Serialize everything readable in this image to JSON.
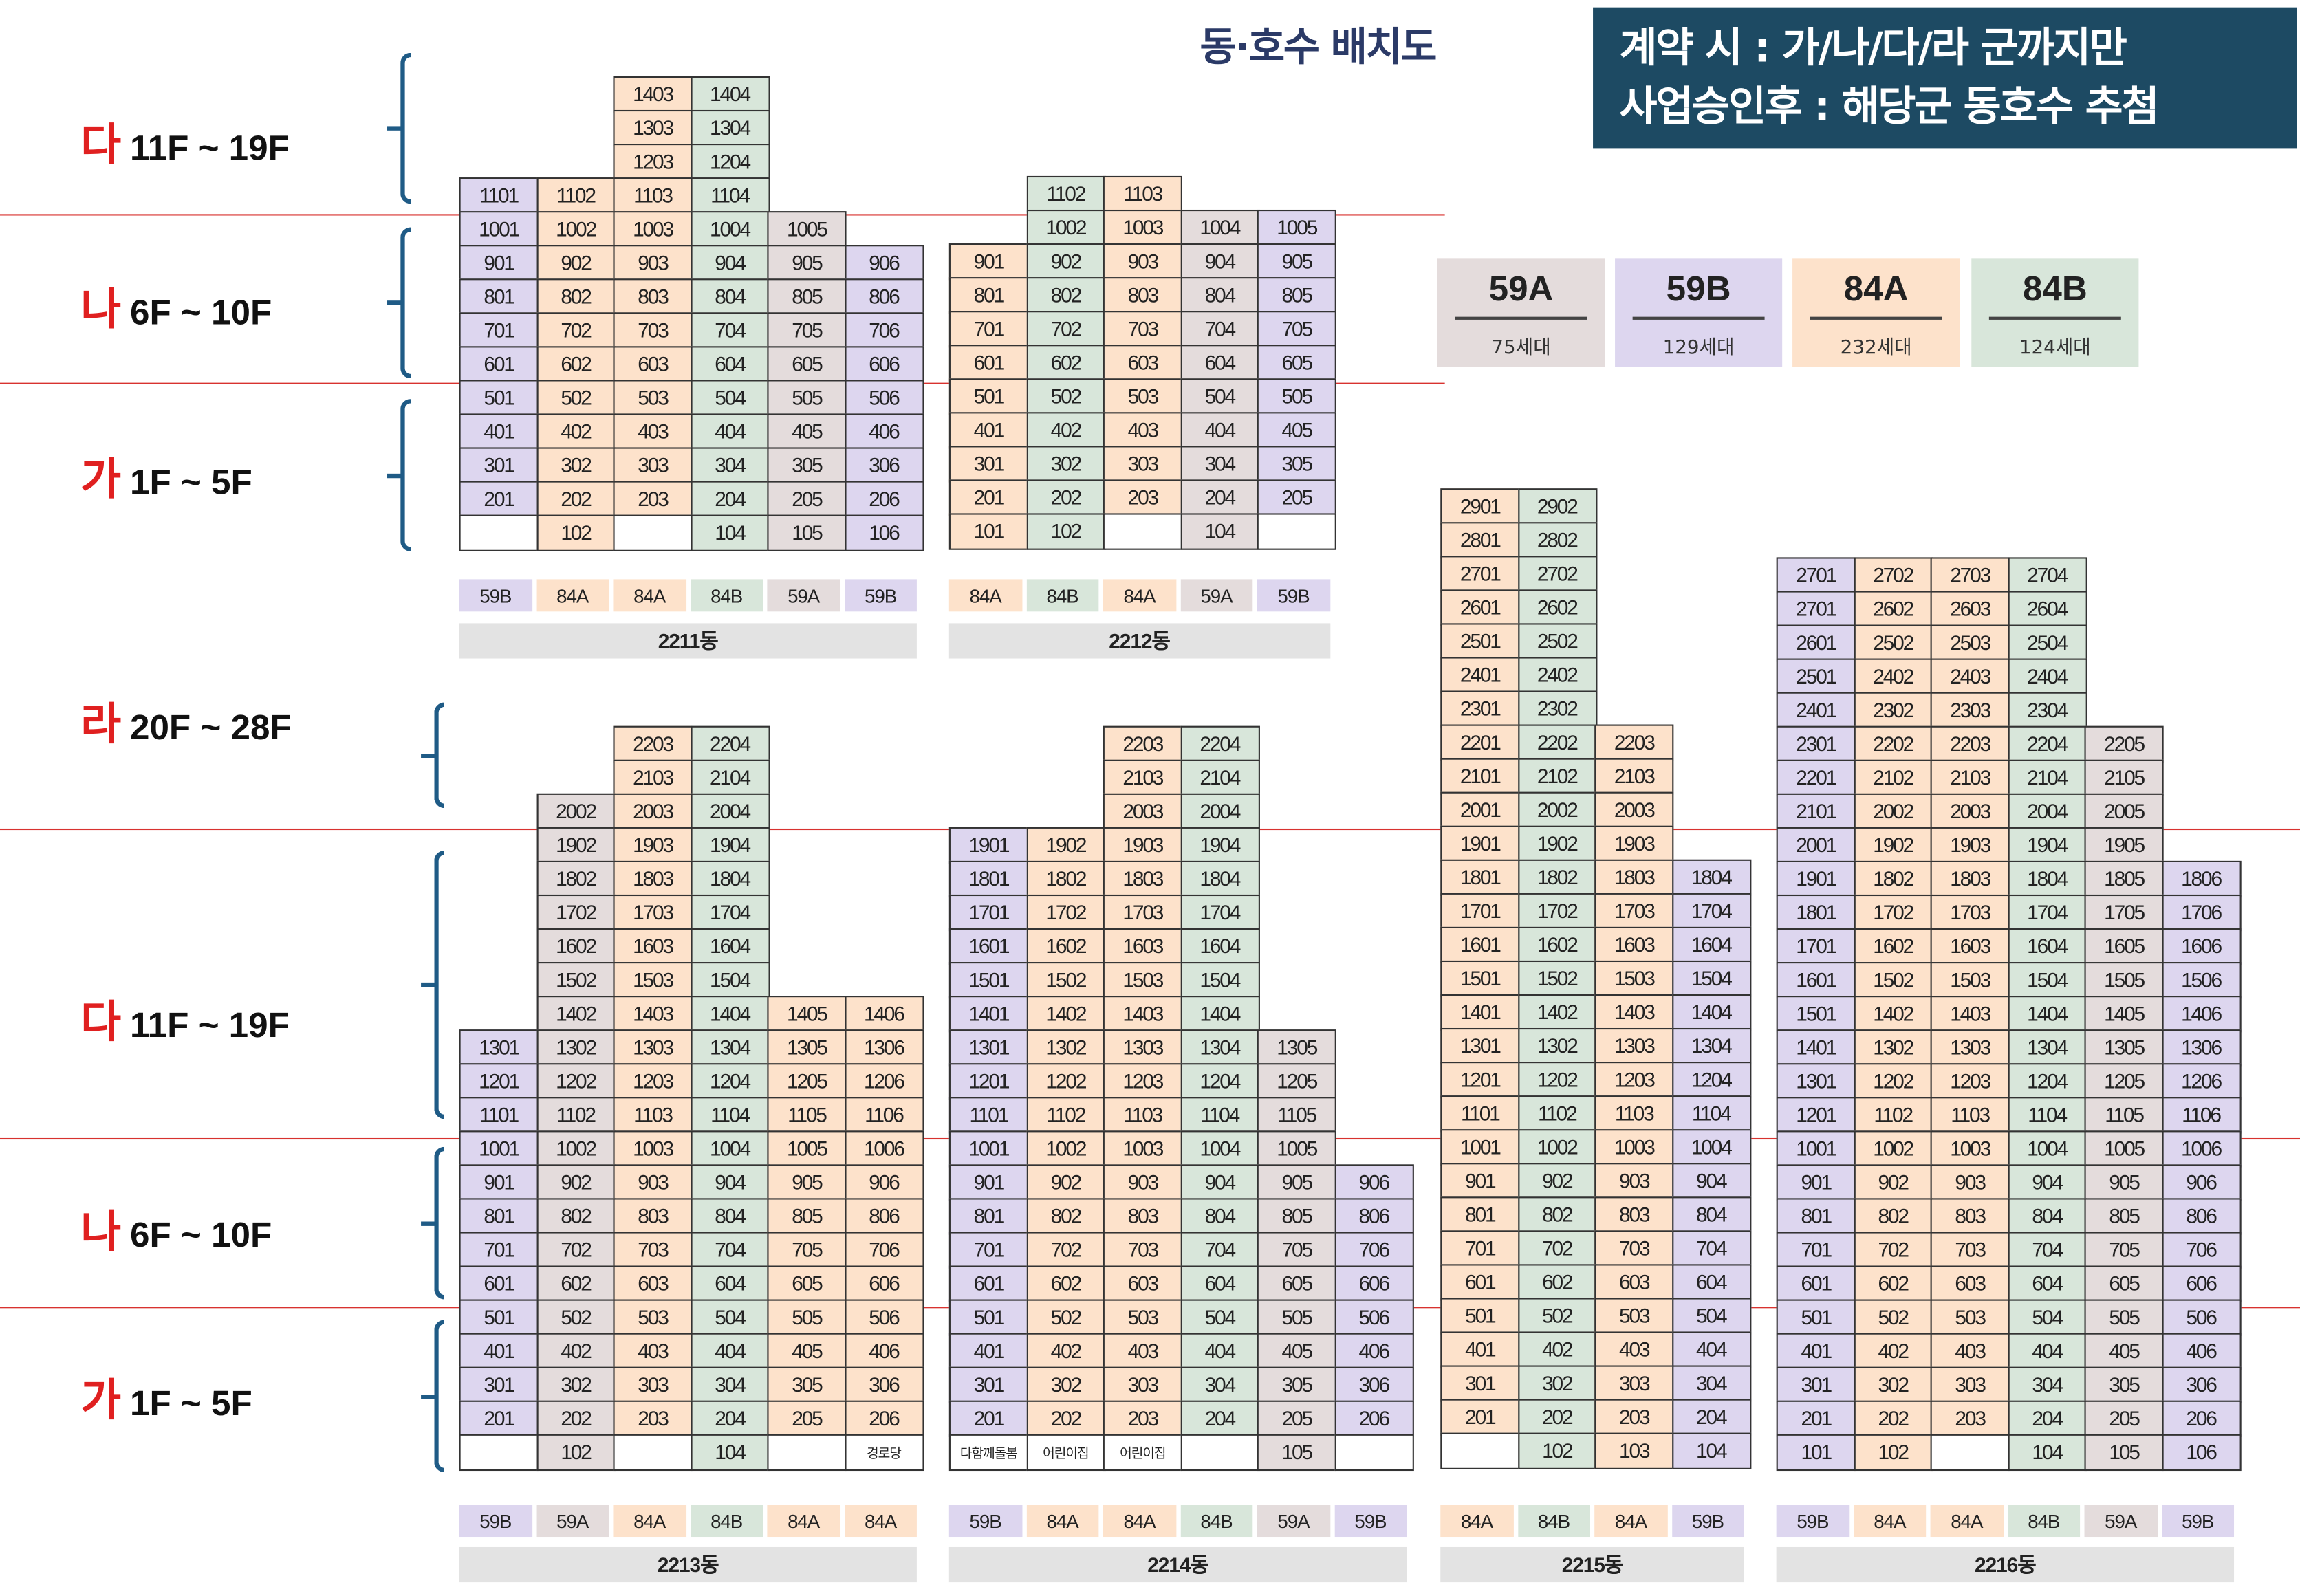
{
  "title": "동·호수 배치도",
  "notice": {
    "line1": "계약 시 : 가/나/다/라 군까지만",
    "line2": "사업승인후 : 해당군 동호수 추첨"
  },
  "colors": {
    "59A": "#e4dcdc",
    "59B": "#ddd6ef",
    "84A": "#fde2cb",
    "84B": "#d8e6da",
    "empty": "#ffffff",
    "line": "#d8322f",
    "brace": "#1f5b86",
    "notice_bg": "#1d4a63"
  },
  "legend": [
    {
      "type": "59A",
      "count": "75세대"
    },
    {
      "type": "59B",
      "count": "129세대"
    },
    {
      "type": "84A",
      "count": "232세대"
    },
    {
      "type": "84B",
      "count": "124세대"
    }
  ],
  "zones": [
    {
      "group": "다",
      "floors": "11F ~ 19F"
    },
    {
      "group": "나",
      "floors": "6F ~ 10F"
    },
    {
      "group": "가",
      "floors": "1F ~ 5F"
    },
    {
      "group": "라",
      "floors": "20F ~ 28F"
    },
    {
      "group": "다",
      "floors": "11F ~ 19F"
    },
    {
      "group": "나",
      "floors": "6F ~ 10F"
    },
    {
      "group": "가",
      "floors": "1F ~ 5F"
    }
  ],
  "buildings": [
    {
      "name": "2211동",
      "types": [
        "59B",
        "84A",
        "84A",
        "84B",
        "59A",
        "59B"
      ],
      "rows": [
        [
          "",
          "",
          "1403",
          "1404",
          "",
          ""
        ],
        [
          "",
          "",
          "1303",
          "1304",
          "",
          ""
        ],
        [
          "",
          "",
          "1203",
          "1204",
          "",
          ""
        ],
        [
          "1101",
          "1102",
          "1103",
          "1104",
          "",
          ""
        ],
        [
          "1001",
          "1002",
          "1003",
          "1004",
          "1005",
          ""
        ],
        [
          "901",
          "902",
          "903",
          "904",
          "905",
          "906"
        ],
        [
          "801",
          "802",
          "803",
          "804",
          "805",
          "806"
        ],
        [
          "701",
          "702",
          "703",
          "704",
          "705",
          "706"
        ],
        [
          "601",
          "602",
          "603",
          "604",
          "605",
          "606"
        ],
        [
          "501",
          "502",
          "503",
          "504",
          "505",
          "506"
        ],
        [
          "401",
          "402",
          "403",
          "404",
          "405",
          "406"
        ],
        [
          "301",
          "302",
          "303",
          "304",
          "305",
          "306"
        ],
        [
          "201",
          "202",
          "203",
          "204",
          "205",
          "206"
        ],
        [
          "0",
          "102",
          "0",
          "104",
          "105",
          "106"
        ]
      ]
    },
    {
      "name": "2212동",
      "types": [
        "84A",
        "84B",
        "84A",
        "59A",
        "59B"
      ],
      "rows": [
        [
          "",
          "1102",
          "1103",
          "",
          ""
        ],
        [
          "",
          "1002",
          "1003",
          "1004",
          "1005"
        ],
        [
          "901",
          "902",
          "903",
          "904",
          "905"
        ],
        [
          "801",
          "802",
          "803",
          "804",
          "805"
        ],
        [
          "701",
          "702",
          "703",
          "704",
          "705"
        ],
        [
          "601",
          "602",
          "603",
          "604",
          "605"
        ],
        [
          "501",
          "502",
          "503",
          "504",
          "505"
        ],
        [
          "401",
          "402",
          "403",
          "404",
          "405"
        ],
        [
          "301",
          "302",
          "303",
          "304",
          "305"
        ],
        [
          "201",
          "202",
          "203",
          "204",
          "205"
        ],
        [
          "101",
          "102",
          "0",
          "104",
          "0"
        ]
      ]
    },
    {
      "name": "2213동",
      "types": [
        "59B",
        "59A",
        "84A",
        "84B",
        "84A",
        "84A"
      ],
      "rows": [
        [
          "",
          "",
          "2203",
          "2204",
          "",
          ""
        ],
        [
          "",
          "",
          "2103",
          "2104",
          "",
          ""
        ],
        [
          "",
          "2002",
          "2003",
          "2004",
          "",
          ""
        ],
        [
          "",
          "1902",
          "1903",
          "1904",
          "",
          ""
        ],
        [
          "",
          "1802",
          "1803",
          "1804",
          "",
          ""
        ],
        [
          "",
          "1702",
          "1703",
          "1704",
          "",
          ""
        ],
        [
          "",
          "1602",
          "1603",
          "1604",
          "",
          ""
        ],
        [
          "",
          "1502",
          "1503",
          "1504",
          "",
          ""
        ],
        [
          "",
          "1402",
          "1403",
          "1404",
          "1405",
          "1406"
        ],
        [
          "1301",
          "1302",
          "1303",
          "1304",
          "1305",
          "1306"
        ],
        [
          "1201",
          "1202",
          "1203",
          "1204",
          "1205",
          "1206"
        ],
        [
          "1101",
          "1102",
          "1103",
          "1104",
          "1105",
          "1106"
        ],
        [
          "1001",
          "1002",
          "1003",
          "1004",
          "1005",
          "1006"
        ],
        [
          "901",
          "902",
          "903",
          "904",
          "905",
          "906"
        ],
        [
          "801",
          "802",
          "803",
          "804",
          "805",
          "806"
        ],
        [
          "701",
          "702",
          "703",
          "704",
          "705",
          "706"
        ],
        [
          "601",
          "602",
          "603",
          "604",
          "605",
          "606"
        ],
        [
          "501",
          "502",
          "503",
          "504",
          "505",
          "506"
        ],
        [
          "401",
          "402",
          "403",
          "404",
          "405",
          "406"
        ],
        [
          "301",
          "302",
          "303",
          "304",
          "305",
          "306"
        ],
        [
          "201",
          "202",
          "203",
          "204",
          "205",
          "206"
        ],
        [
          "0",
          "102",
          "0",
          "104",
          "0",
          "경로당"
        ]
      ]
    },
    {
      "name": "2214동",
      "types": [
        "59B",
        "84A",
        "84A",
        "84B",
        "59A",
        "59B"
      ],
      "rows": [
        [
          "",
          "",
          "2203",
          "2204",
          "",
          ""
        ],
        [
          "",
          "",
          "2103",
          "2104",
          "",
          ""
        ],
        [
          "",
          "",
          "2003",
          "2004",
          "",
          ""
        ],
        [
          "1901",
          "1902",
          "1903",
          "1904",
          "",
          ""
        ],
        [
          "1801",
          "1802",
          "1803",
          "1804",
          "",
          ""
        ],
        [
          "1701",
          "1702",
          "1703",
          "1704",
          "",
          ""
        ],
        [
          "1601",
          "1602",
          "1603",
          "1604",
          "",
          ""
        ],
        [
          "1501",
          "1502",
          "1503",
          "1504",
          "",
          ""
        ],
        [
          "1401",
          "1402",
          "1403",
          "1404",
          "",
          ""
        ],
        [
          "1301",
          "1302",
          "1303",
          "1304",
          "1305",
          ""
        ],
        [
          "1201",
          "1202",
          "1203",
          "1204",
          "1205",
          ""
        ],
        [
          "1101",
          "1102",
          "1103",
          "1104",
          "1105",
          ""
        ],
        [
          "1001",
          "1002",
          "1003",
          "1004",
          "1005",
          ""
        ],
        [
          "901",
          "902",
          "903",
          "904",
          "905",
          "906"
        ],
        [
          "801",
          "802",
          "803",
          "804",
          "805",
          "806"
        ],
        [
          "701",
          "702",
          "703",
          "704",
          "705",
          "706"
        ],
        [
          "601",
          "602",
          "603",
          "604",
          "605",
          "606"
        ],
        [
          "501",
          "502",
          "503",
          "504",
          "505",
          "506"
        ],
        [
          "401",
          "402",
          "403",
          "404",
          "405",
          "406"
        ],
        [
          "301",
          "302",
          "303",
          "304",
          "305",
          "306"
        ],
        [
          "201",
          "202",
          "203",
          "204",
          "205",
          "206"
        ],
        [
          "다함께돌봄",
          "어린이집",
          "어린이집",
          "0",
          "105",
          "0"
        ]
      ]
    },
    {
      "name": "2215동",
      "types": [
        "84A",
        "84B",
        "84A",
        "59B"
      ],
      "rows": [
        [
          "2901",
          "2902",
          "",
          ""
        ],
        [
          "2801",
          "2802",
          "",
          ""
        ],
        [
          "2701",
          "2702",
          "",
          ""
        ],
        [
          "2601",
          "2602",
          "",
          ""
        ],
        [
          "2501",
          "2502",
          "",
          ""
        ],
        [
          "2401",
          "2402",
          "",
          ""
        ],
        [
          "2301",
          "2302",
          "",
          ""
        ],
        [
          "2201",
          "2202",
          "2203",
          ""
        ],
        [
          "2101",
          "2102",
          "2103",
          ""
        ],
        [
          "2001",
          "2002",
          "2003",
          ""
        ],
        [
          "1901",
          "1902",
          "1903",
          ""
        ],
        [
          "1801",
          "1802",
          "1803",
          "1804"
        ],
        [
          "1701",
          "1702",
          "1703",
          "1704"
        ],
        [
          "1601",
          "1602",
          "1603",
          "1604"
        ],
        [
          "1501",
          "1502",
          "1503",
          "1504"
        ],
        [
          "1401",
          "1402",
          "1403",
          "1404"
        ],
        [
          "1301",
          "1302",
          "1303",
          "1304"
        ],
        [
          "1201",
          "1202",
          "1203",
          "1204"
        ],
        [
          "1101",
          "1102",
          "1103",
          "1104"
        ],
        [
          "1001",
          "1002",
          "1003",
          "1004"
        ],
        [
          "901",
          "902",
          "903",
          "904"
        ],
        [
          "801",
          "802",
          "803",
          "804"
        ],
        [
          "701",
          "702",
          "703",
          "704"
        ],
        [
          "601",
          "602",
          "603",
          "604"
        ],
        [
          "501",
          "502",
          "503",
          "504"
        ],
        [
          "401",
          "402",
          "403",
          "404"
        ],
        [
          "301",
          "302",
          "303",
          "304"
        ],
        [
          "201",
          "202",
          "203",
          "204"
        ],
        [
          "0",
          "102",
          "103",
          "104"
        ]
      ]
    },
    {
      "name": "2216동",
      "types": [
        "59B",
        "84A",
        "84A",
        "84B",
        "59A",
        "59B"
      ],
      "rows": [
        [
          "2701",
          "2702",
          "2703",
          "2704",
          "",
          ""
        ],
        [
          "2701",
          "2602",
          "2603",
          "2604",
          "",
          ""
        ],
        [
          "2601",
          "2502",
          "2503",
          "2504",
          "",
          ""
        ],
        [
          "2501",
          "2402",
          "2403",
          "2404",
          "",
          ""
        ],
        [
          "2401",
          "2302",
          "2303",
          "2304",
          "",
          ""
        ],
        [
          "2301",
          "2202",
          "2203",
          "2204",
          "2205",
          ""
        ],
        [
          "2201",
          "2102",
          "2103",
          "2104",
          "2105",
          ""
        ],
        [
          "2101",
          "2002",
          "2003",
          "2004",
          "2005",
          ""
        ],
        [
          "2001",
          "1902",
          "1903",
          "1904",
          "1905",
          ""
        ],
        [
          "1901",
          "1802",
          "1803",
          "1804",
          "1805",
          "1806"
        ],
        [
          "1801",
          "1702",
          "1703",
          "1704",
          "1705",
          "1706"
        ],
        [
          "1701",
          "1602",
          "1603",
          "1604",
          "1605",
          "1606"
        ],
        [
          "1601",
          "1502",
          "1503",
          "1504",
          "1505",
          "1506"
        ],
        [
          "1501",
          "1402",
          "1403",
          "1404",
          "1405",
          "1406"
        ],
        [
          "1401",
          "1302",
          "1303",
          "1304",
          "1305",
          "1306"
        ],
        [
          "1301",
          "1202",
          "1203",
          "1204",
          "1205",
          "1206"
        ],
        [
          "1201",
          "1102",
          "1103",
          "1104",
          "1105",
          "1106"
        ],
        [
          "1001",
          "1002",
          "1003",
          "1004",
          "1005",
          "1006"
        ],
        [
          "901",
          "902",
          "903",
          "904",
          "905",
          "906"
        ],
        [
          "801",
          "802",
          "803",
          "804",
          "805",
          "806"
        ],
        [
          "701",
          "702",
          "703",
          "704",
          "705",
          "706"
        ],
        [
          "601",
          "602",
          "603",
          "604",
          "605",
          "606"
        ],
        [
          "501",
          "502",
          "503",
          "504",
          "505",
          "506"
        ],
        [
          "401",
          "402",
          "403",
          "404",
          "405",
          "406"
        ],
        [
          "301",
          "302",
          "303",
          "304",
          "305",
          "306"
        ],
        [
          "201",
          "202",
          "203",
          "204",
          "205",
          "206"
        ],
        [
          "101",
          "102",
          "0",
          "104",
          "105",
          "106"
        ]
      ]
    }
  ]
}
